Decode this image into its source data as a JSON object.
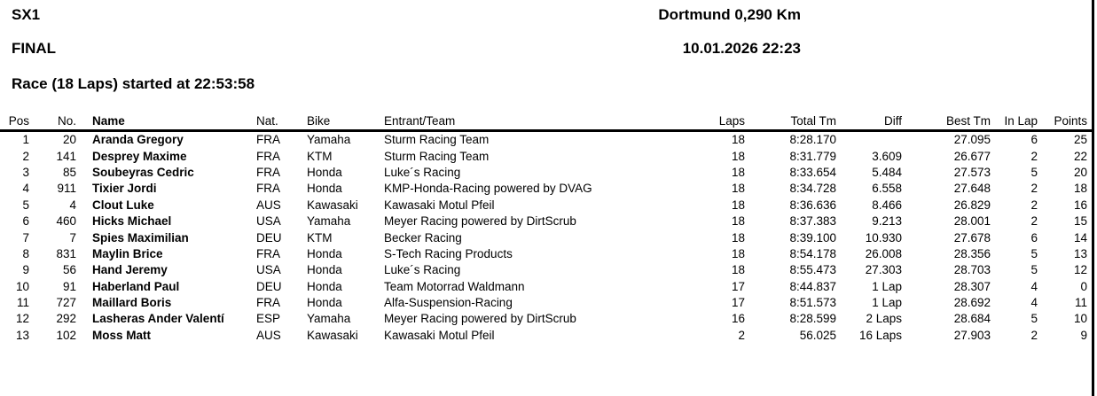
{
  "colors": {
    "background": "#ffffff",
    "text": "#000000",
    "rule": "#000000"
  },
  "page": {
    "title_block": {
      "class_name": "SX1",
      "session": "FINAL",
      "race_info": "Race (18 Laps) started at 22:53:58"
    },
    "event_block": {
      "location_length": "Dortmund 0,290 Km",
      "datetime": "10.01.2026 22:23"
    }
  },
  "table": {
    "columns": [
      {
        "key": "pos",
        "label": "Pos",
        "align": "right"
      },
      {
        "key": "no",
        "label": "No.",
        "align": "right"
      },
      {
        "key": "name",
        "label": "Name",
        "align": "left"
      },
      {
        "key": "nat",
        "label": "Nat.",
        "align": "left"
      },
      {
        "key": "bike",
        "label": "Bike",
        "align": "left"
      },
      {
        "key": "team",
        "label": "Entrant/Team",
        "align": "left"
      },
      {
        "key": "laps",
        "label": "Laps",
        "align": "right"
      },
      {
        "key": "total",
        "label": "Total Tm",
        "align": "right"
      },
      {
        "key": "diff",
        "label": "Diff",
        "align": "right"
      },
      {
        "key": "best",
        "label": "Best Tm",
        "align": "right"
      },
      {
        "key": "inlap",
        "label": "In Lap",
        "align": "right"
      },
      {
        "key": "points",
        "label": "Points",
        "align": "right"
      }
    ],
    "rows": [
      {
        "pos": "1",
        "no": "20",
        "name": "Aranda Gregory",
        "nat": "FRA",
        "bike": "Yamaha",
        "team": "Sturm Racing Team",
        "laps": "18",
        "total": "8:28.170",
        "diff": "",
        "best": "27.095",
        "inlap": "6",
        "points": "25"
      },
      {
        "pos": "2",
        "no": "141",
        "name": "Desprey Maxime",
        "nat": "FRA",
        "bike": "KTM",
        "team": "Sturm Racing Team",
        "laps": "18",
        "total": "8:31.779",
        "diff": "3.609",
        "best": "26.677",
        "inlap": "2",
        "points": "22"
      },
      {
        "pos": "3",
        "no": "85",
        "name": "Soubeyras Cedric",
        "nat": "FRA",
        "bike": "Honda",
        "team": "Luke´s Racing",
        "laps": "18",
        "total": "8:33.654",
        "diff": "5.484",
        "best": "27.573",
        "inlap": "5",
        "points": "20"
      },
      {
        "pos": "4",
        "no": "911",
        "name": "Tixier Jordi",
        "nat": "FRA",
        "bike": "Honda",
        "team": "KMP-Honda-Racing powered by DVAG",
        "laps": "18",
        "total": "8:34.728",
        "diff": "6.558",
        "best": "27.648",
        "inlap": "2",
        "points": "18"
      },
      {
        "pos": "5",
        "no": "4",
        "name": "Clout Luke",
        "nat": "AUS",
        "bike": "Kawasaki",
        "team": "Kawasaki Motul Pfeil",
        "laps": "18",
        "total": "8:36.636",
        "diff": "8.466",
        "best": "26.829",
        "inlap": "2",
        "points": "16"
      },
      {
        "pos": "6",
        "no": "460",
        "name": "Hicks Michael",
        "nat": "USA",
        "bike": "Yamaha",
        "team": "Meyer Racing powered by DirtScrub",
        "laps": "18",
        "total": "8:37.383",
        "diff": "9.213",
        "best": "28.001",
        "inlap": "2",
        "points": "15"
      },
      {
        "pos": "7",
        "no": "7",
        "name": "Spies Maximilian",
        "nat": "DEU",
        "bike": "KTM",
        "team": "Becker Racing",
        "laps": "18",
        "total": "8:39.100",
        "diff": "10.930",
        "best": "27.678",
        "inlap": "6",
        "points": "14"
      },
      {
        "pos": "8",
        "no": "831",
        "name": "Maylin Brice",
        "nat": "FRA",
        "bike": "Honda",
        "team": "S-Tech Racing Products",
        "laps": "18",
        "total": "8:54.178",
        "diff": "26.008",
        "best": "28.356",
        "inlap": "5",
        "points": "13"
      },
      {
        "pos": "9",
        "no": "56",
        "name": "Hand Jeremy",
        "nat": "USA",
        "bike": "Honda",
        "team": "Luke´s Racing",
        "laps": "18",
        "total": "8:55.473",
        "diff": "27.303",
        "best": "28.703",
        "inlap": "5",
        "points": "12"
      },
      {
        "pos": "10",
        "no": "91",
        "name": "Haberland Paul",
        "nat": "DEU",
        "bike": "Honda",
        "team": "Team Motorrad Waldmann",
        "laps": "17",
        "total": "8:44.837",
        "diff": "1 Lap",
        "best": "28.307",
        "inlap": "4",
        "points": "0"
      },
      {
        "pos": "11",
        "no": "727",
        "name": "Maillard Boris",
        "nat": "FRA",
        "bike": "Honda",
        "team": "Alfa-Suspension-Racing",
        "laps": "17",
        "total": "8:51.573",
        "diff": "1 Lap",
        "best": "28.692",
        "inlap": "4",
        "points": "11"
      },
      {
        "pos": "12",
        "no": "292",
        "name": "Lasheras Ander Valentí",
        "nat": "ESP",
        "bike": "Yamaha",
        "team": "Meyer Racing powered by DirtScrub",
        "laps": "16",
        "total": "8:28.599",
        "diff": "2 Laps",
        "best": "28.684",
        "inlap": "5",
        "points": "10"
      },
      {
        "pos": "13",
        "no": "102",
        "name": "Moss Matt",
        "nat": "AUS",
        "bike": "Kawasaki",
        "team": "Kawasaki Motul Pfeil",
        "laps": "2",
        "total": "56.025",
        "diff": "16 Laps",
        "best": "27.903",
        "inlap": "2",
        "points": "9"
      }
    ]
  }
}
